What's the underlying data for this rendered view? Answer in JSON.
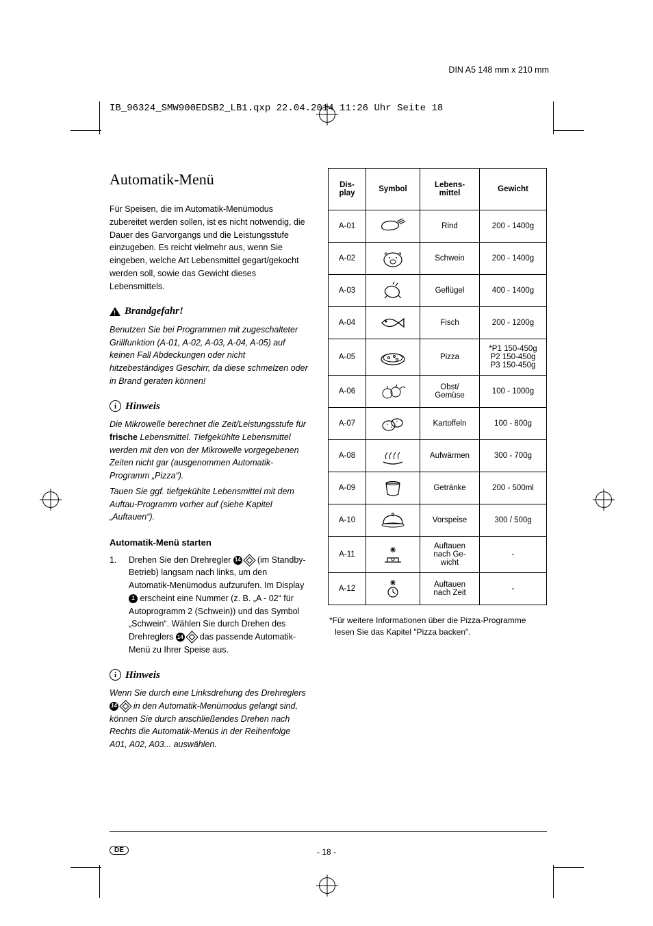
{
  "meta": {
    "dim_label": "DIN A5 148 mm x 210 mm",
    "file_line": "IB_96324_SMW900EDSB2_LB1.qxp  22.04.2014  11:26 Uhr  Seite 18",
    "page_number": "- 18 -",
    "lang_code": "DE"
  },
  "left": {
    "title": "Automatik-Menü",
    "intro": "Für Speisen, die im Automatik-Menümodus zubereitet werden sollen, ist es nicht notwendig, die Dauer des Garvorgangs und die Leistungsstufe einzugeben. Es reicht vielmehr aus, wenn Sie eingeben, welche Art Lebensmittel gegart/gekocht werden soll, sowie das Gewicht dieses Lebensmittels.",
    "warn_head": "Brandgefahr!",
    "warn_body": "Benutzen Sie bei Programmen mit zugeschalteter Grillfunktion (A-01, A-02, A-03, A-04, A-05) auf keinen Fall Abdeckungen oder nicht hitzebeständiges Geschirr, da diese schmelzen oder in Brand geraten können!",
    "hint1_head": "Hinweis",
    "hint1_p1a": "Die Mikrowelle berechnet die Zeit/Leistungsstufe für ",
    "hint1_p1b": "frische",
    "hint1_p1c": " Lebensmittel. Tiefgekühlte Lebensmittel werden mit den von der Mikrowelle vorgegebenen Zeiten nicht gar (ausgenommen Automatik-Programm „Pizza“).",
    "hint1_p2": "Tauen Sie ggf. tiefgekühlte Lebensmittel mit dem Auftau-Programm vorher auf (siehe Kapitel „Auftauen“).",
    "start_head": "Automatik-Menü starten",
    "step1_a": "Drehen Sie den Drehregler ",
    "step1_b": " (im Standby-Betrieb) langsam nach links, um den Automatik-Menümodus aufzurufen. Im Display ",
    "step1_c": " erscheint eine Nummer (z. B. „A - 02“ für Autoprogramm 2 (Schwein)) und das Symbol „Schwein“. Wählen Sie durch Drehen des Drehreglers ",
    "step1_d": " das passende Automatik-Menü zu Ihrer Speise aus.",
    "hint2_head": "Hinweis",
    "hint2_a": "Wenn Sie durch eine Linksdrehung des Drehreglers ",
    "hint2_b": " in den Automatik-Menümodus gelangt sind, können Sie durch anschließendes Drehen nach Rechts die Automatik-Menüs in der Reihenfolge A01, A02, A03... auswählen."
  },
  "table": {
    "headers": {
      "c1": "Dis-\nplay",
      "c2": "Symbol",
      "c3": "Lebens-\nmittel",
      "c4": "Gewicht"
    },
    "rows": [
      {
        "code": "A-01",
        "food": "Rind",
        "weight": "200 - 1400g"
      },
      {
        "code": "A-02",
        "food": "Schwein",
        "weight": "200 - 1400g"
      },
      {
        "code": "A-03",
        "food": "Geflügel",
        "weight": "400 - 1400g"
      },
      {
        "code": "A-04",
        "food": "Fisch",
        "weight": "200 - 1200g"
      },
      {
        "code": "A-05",
        "food": "Pizza",
        "weight": "*P1 150-450g\nP2 150-450g\nP3 150-450g"
      },
      {
        "code": "A-06",
        "food": "Obst/\nGemüse",
        "weight": "100 - 1000g"
      },
      {
        "code": "A-07",
        "food": "Kartoffeln",
        "weight": "100 -  800g"
      },
      {
        "code": "A-08",
        "food": "Aufwärmen",
        "weight": "300 - 700g"
      },
      {
        "code": "A-09",
        "food": "Getränke",
        "weight": "200 - 500ml"
      },
      {
        "code": "A-10",
        "food": "Vorspeise",
        "weight": "300 / 500g"
      },
      {
        "code": "A-11",
        "food": "Auftauen\nnach Ge-\nwicht",
        "weight": "-"
      },
      {
        "code": "A-12",
        "food": "Auftauen\nnach Zeit",
        "weight": "-"
      }
    ],
    "footnote": "*Für weitere Informationen über die Pizza-Programme lesen Sie das Kapitel \"Pizza backen\"."
  }
}
